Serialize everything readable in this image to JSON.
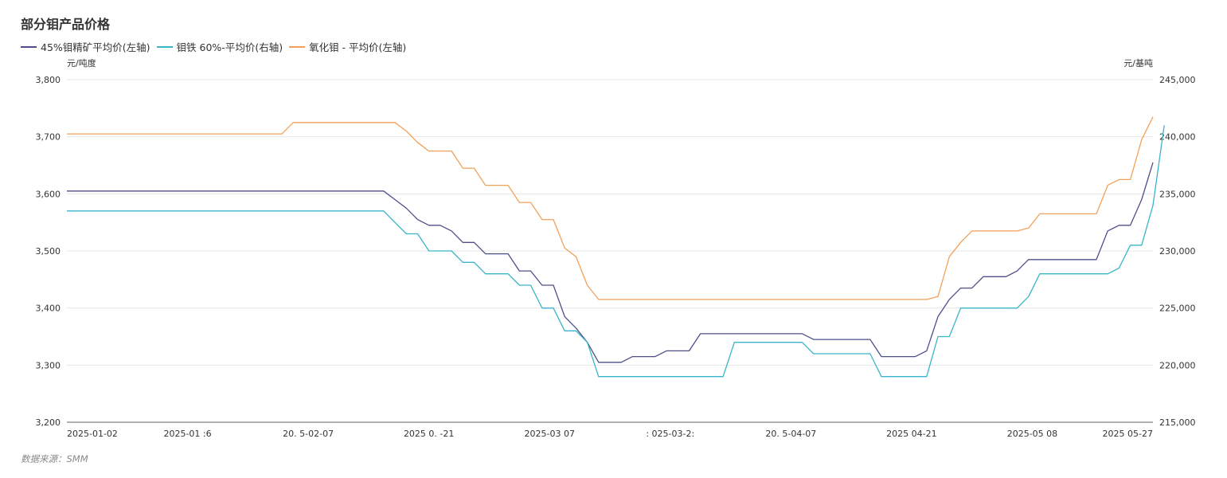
{
  "title": "部分钼产品价格",
  "source": "数据来源：SMM",
  "legend": [
    {
      "label": "45%钼精矿平均价(左轴)",
      "color": "#4e4f8a"
    },
    {
      "label": "钼铁 60%-平均价(右轴)",
      "color": "#3ab4c8"
    },
    {
      "label": "氧化钼 - 平均价(左轴)",
      "color": "#f2a15a"
    }
  ],
  "chart_data": {
    "type": "line",
    "title": "部分钼产品价格",
    "left_axis": {
      "unit": "元/吨度",
      "min": 3200,
      "max": 3800,
      "ticks": [
        "3,200",
        "3,300",
        "3,400",
        "3,500",
        "3,600",
        "3,700",
        "3,800"
      ]
    },
    "right_axis": {
      "unit": "元/基吨",
      "min": 215000,
      "max": 245000,
      "ticks": [
        "215,000",
        "220,000",
        "225,000",
        "230,000",
        "235,000",
        "240,000",
        "245,000"
      ]
    },
    "x_tick_labels": [
      "2025-01-02",
      "2025-01 :6",
      "20. 5-02-07",
      "2025 0. -21",
      "2025-03 07",
      ": 025-03-2:",
      "20. 5-04-07",
      "2025 04-21",
      "2025-05 08",
      "2025 05-27"
    ],
    "grid": "horizontal",
    "legend_position": "top-left",
    "series": [
      {
        "name": "45%钼精矿平均价(左轴)",
        "axis": "left",
        "color": "#4e4f8a",
        "values": [
          3605,
          3605,
          3605,
          3605,
          3605,
          3605,
          3605,
          3605,
          3605,
          3605,
          3605,
          3605,
          3605,
          3605,
          3605,
          3605,
          3605,
          3605,
          3605,
          3605,
          3605,
          3605,
          3605,
          3605,
          3605,
          3605,
          3605,
          3605,
          3605,
          3590,
          3575,
          3555,
          3545,
          3545,
          3535,
          3515,
          3515,
          3495,
          3495,
          3495,
          3465,
          3465,
          3440,
          3440,
          3385,
          3365,
          3340,
          3305,
          3305,
          3305,
          3315,
          3315,
          3315,
          3325,
          3325,
          3325,
          3355,
          3355,
          3355,
          3355,
          3355,
          3355,
          3355,
          3355,
          3355,
          3355,
          3345,
          3345,
          3345,
          3345,
          3345,
          3345,
          3315,
          3315,
          3315,
          3315,
          3325,
          3385,
          3415,
          3435,
          3435,
          3455,
          3455,
          3455,
          3465,
          3485,
          3485,
          3485,
          3485,
          3485,
          3485,
          3485,
          3535,
          3545,
          3545,
          3590,
          3655
        ]
      },
      {
        "name": "钼铁 60%-平均价(右轴)",
        "axis": "right",
        "color": "#3ab4c8",
        "values": [
          233500,
          233500,
          233500,
          233500,
          233500,
          233500,
          233500,
          233500,
          233500,
          233500,
          233500,
          233500,
          233500,
          233500,
          233500,
          233500,
          233500,
          233500,
          233500,
          233500,
          233500,
          233500,
          233500,
          233500,
          233500,
          233500,
          233500,
          233500,
          233500,
          232500,
          231500,
          231500,
          230000,
          230000,
          230000,
          229000,
          229000,
          228000,
          228000,
          228000,
          227000,
          227000,
          225000,
          225000,
          223000,
          223000,
          222000,
          219000,
          219000,
          219000,
          219000,
          219000,
          219000,
          219000,
          219000,
          219000,
          219000,
          219000,
          219000,
          222000,
          222000,
          222000,
          222000,
          222000,
          222000,
          222000,
          221000,
          221000,
          221000,
          221000,
          221000,
          221000,
          219000,
          219000,
          219000,
          219000,
          219000,
          222500,
          222500,
          225000,
          225000,
          225000,
          225000,
          225000,
          225000,
          226000,
          228000,
          228000,
          228000,
          228000,
          228000,
          228000,
          228000,
          228500,
          230500,
          230500,
          234000,
          241000
        ]
      },
      {
        "name": "氧化钼 - 平均价(左轴)",
        "axis": "left",
        "color": "#f2a15a",
        "values": [
          3705,
          3705,
          3705,
          3705,
          3705,
          3705,
          3705,
          3705,
          3705,
          3705,
          3705,
          3705,
          3705,
          3705,
          3705,
          3705,
          3705,
          3705,
          3705,
          3705,
          3725,
          3725,
          3725,
          3725,
          3725,
          3725,
          3725,
          3725,
          3725,
          3725,
          3710,
          3690,
          3675,
          3675,
          3675,
          3645,
          3645,
          3615,
          3615,
          3615,
          3585,
          3585,
          3555,
          3555,
          3505,
          3490,
          3440,
          3415,
          3415,
          3415,
          3415,
          3415,
          3415,
          3415,
          3415,
          3415,
          3415,
          3415,
          3415,
          3415,
          3415,
          3415,
          3415,
          3415,
          3415,
          3415,
          3415,
          3415,
          3415,
          3415,
          3415,
          3415,
          3415,
          3415,
          3415,
          3415,
          3415,
          3420,
          3490,
          3515,
          3535,
          3535,
          3535,
          3535,
          3535,
          3540,
          3565,
          3565,
          3565,
          3565,
          3565,
          3565,
          3615,
          3625,
          3625,
          3695,
          3735
        ]
      }
    ]
  }
}
